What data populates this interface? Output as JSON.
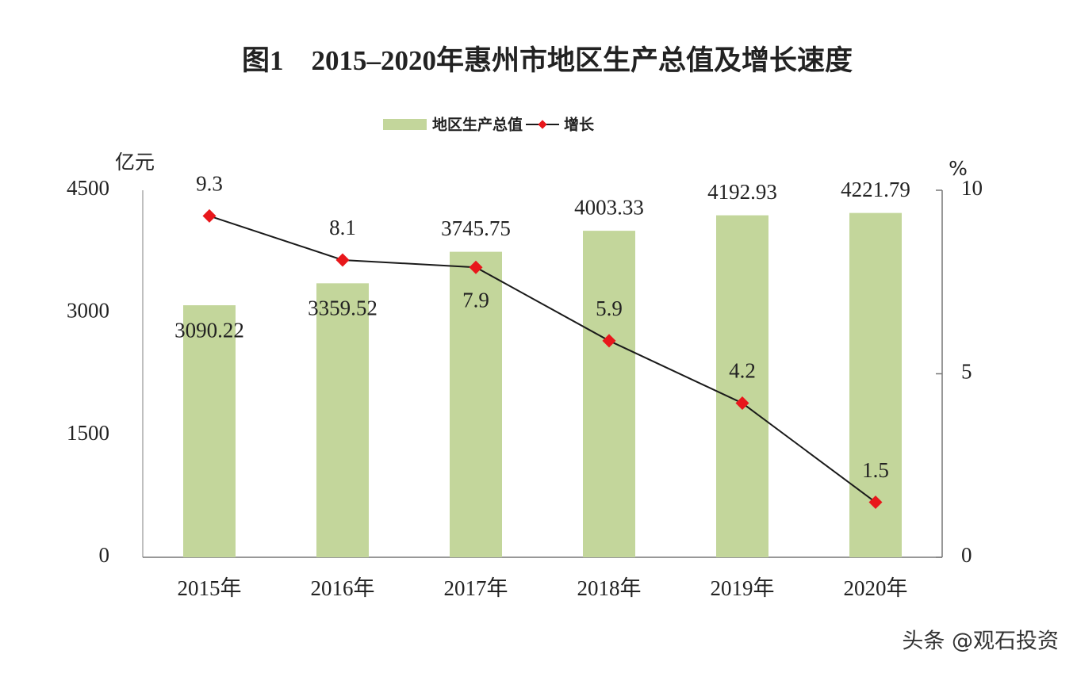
{
  "chart_data": {
    "type": "bar",
    "title": "图1　2015–2020年惠州市地区生产总值及增长速度",
    "categories": [
      "2015年",
      "2016年",
      "2017年",
      "2018年",
      "2019年",
      "2020年"
    ],
    "series": [
      {
        "name": "地区生产总值",
        "type": "bar",
        "color": "#c3d69b",
        "axis": "y",
        "values": [
          3090.22,
          3359.52,
          3745.75,
          4003.33,
          4192.93,
          4221.79
        ]
      },
      {
        "name": "增长",
        "type": "line",
        "color": "#1a1a1a",
        "marker_color": "#e8171b",
        "axis": "y2",
        "values": [
          9.3,
          8.1,
          7.9,
          5.9,
          4.2,
          1.5
        ]
      }
    ],
    "y_label": "亿元",
    "y2_label": "%",
    "ylim": [
      0,
      4500
    ],
    "yticks": [
      0,
      1500,
      3000,
      4500
    ],
    "y2lim": [
      0,
      10
    ],
    "y2ticks": [
      0,
      5,
      10
    ],
    "legend": "top",
    "grid": false,
    "watermark": "头条 @观石投资"
  }
}
